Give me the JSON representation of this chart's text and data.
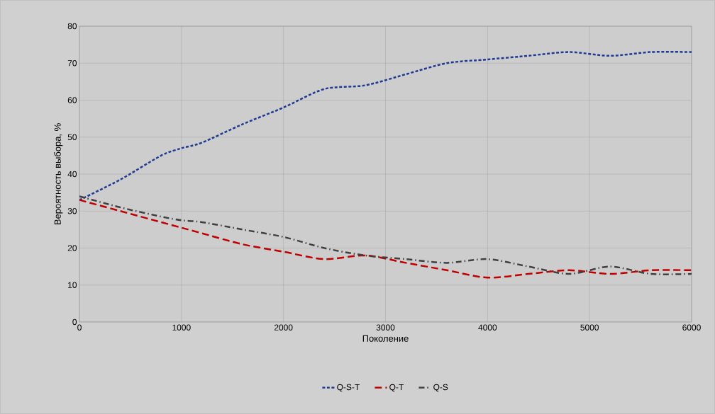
{
  "chart_data": {
    "type": "line",
    "xlabel": "Поколение",
    "ylabel": "Вероятность выбора, %",
    "x": [
      0,
      400,
      800,
      1000,
      1200,
      1600,
      2000,
      2400,
      2800,
      3200,
      3600,
      4000,
      4400,
      4800,
      5200,
      5600,
      6000
    ],
    "series": [
      {
        "name": "Q-S-T",
        "color": "#1f3a93",
        "line_style": "dotted",
        "values": [
          33,
          38.5,
          45,
          47,
          48.5,
          53.5,
          58,
          63,
          64,
          67,
          70,
          71,
          72,
          73,
          72,
          73,
          73
        ]
      },
      {
        "name": "Q-T",
        "color": "#c00000",
        "line_style": "dashed",
        "values": [
          33,
          30,
          27,
          25.5,
          24,
          21,
          19,
          17,
          18,
          16,
          14,
          12,
          13,
          14,
          13,
          14,
          14
        ]
      },
      {
        "name": "Q-S",
        "color": "#404040",
        "line_style": "dashdot",
        "values": [
          34,
          31,
          28.5,
          27.5,
          27,
          25,
          23,
          20,
          18,
          17,
          16,
          17,
          15,
          13,
          15,
          13,
          13
        ]
      }
    ],
    "xlim": [
      0,
      6000
    ],
    "xticks": [
      0,
      1000,
      2000,
      3000,
      4000,
      5000,
      6000
    ],
    "ylim": [
      0,
      80
    ],
    "yticks": [
      0,
      10,
      20,
      30,
      40,
      50,
      60,
      70,
      80
    ],
    "grid": true,
    "legend": "bottom"
  }
}
